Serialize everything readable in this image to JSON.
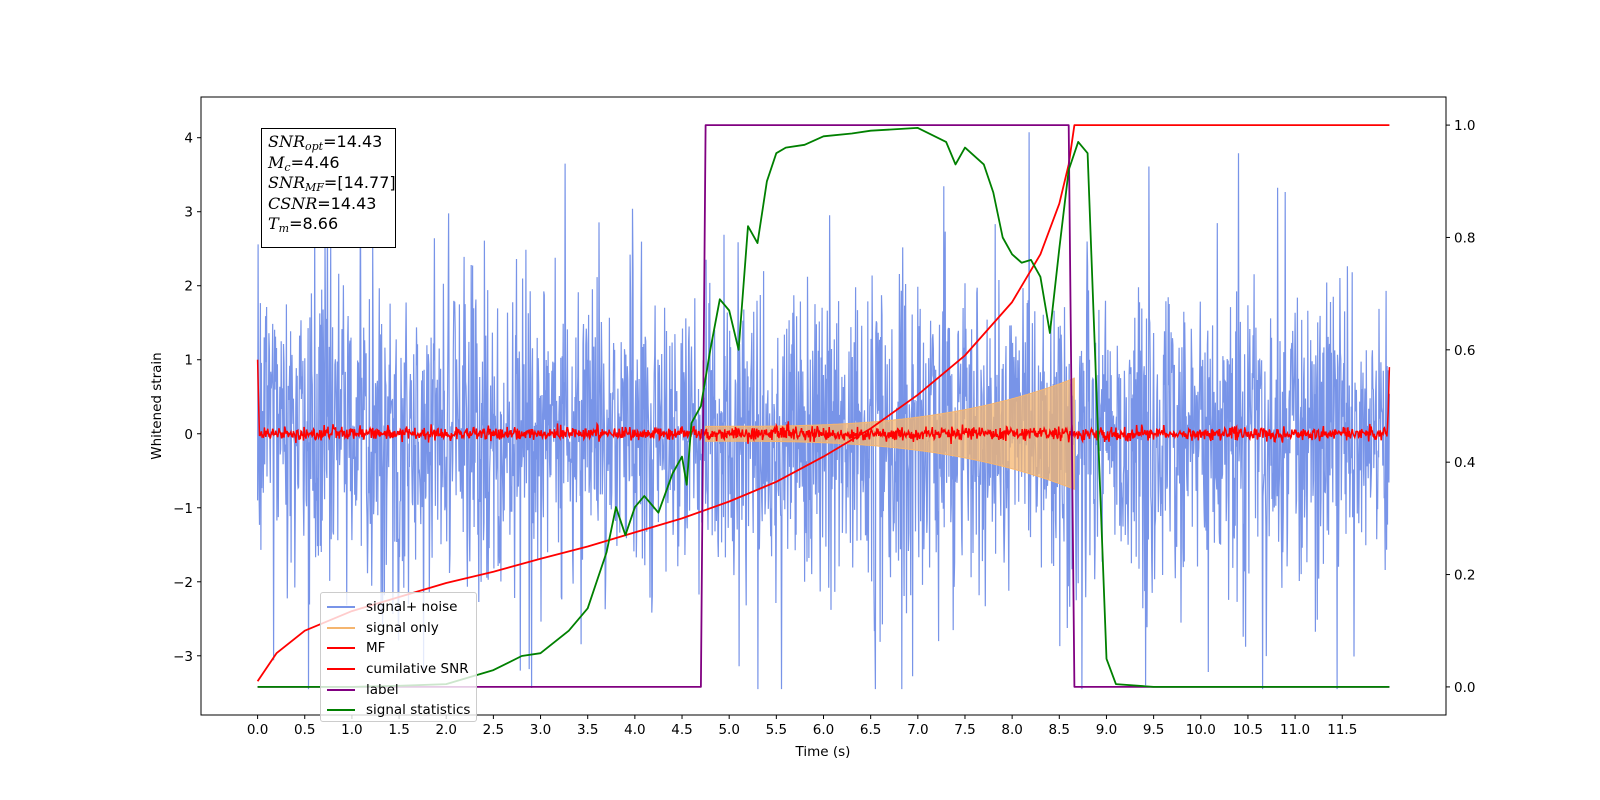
{
  "chart_data": {
    "type": "line",
    "xlabel": "Time (s)",
    "ylabel": "Whitened strain",
    "xlim": [
      -0.6,
      12.6
    ],
    "ylim": [
      -3.8,
      4.55
    ],
    "y2lim": [
      -0.05,
      1.05
    ],
    "x_ticks": [
      "0.0",
      "0.5",
      "1.0",
      "1.5",
      "2.0",
      "2.5",
      "3.0",
      "3.5",
      "4.0",
      "4.5",
      "5.0",
      "5.5",
      "6.0",
      "6.5",
      "7.0",
      "7.5",
      "8.0",
      "8.5",
      "9.0",
      "9.5",
      "10.0",
      "10.5",
      "11.0",
      "11.5"
    ],
    "y_ticks": [
      "−3",
      "−2",
      "−1",
      "0",
      "1",
      "2",
      "3",
      "4"
    ],
    "y2_ticks": [
      "0.0",
      "0.2",
      "0.4",
      "0.6",
      "0.8",
      "1.0"
    ],
    "signal_start": 4.75,
    "merger_time": 8.66,
    "series": [
      {
        "name": "signal+ noise",
        "color": "#7894e8",
        "axis": "left",
        "description": "white noise, amplitude about ±4, over 0–12 s"
      },
      {
        "name": "signal only",
        "color": "#f5b56f",
        "axis": "left",
        "description": "chirp envelope from 4.75 s to 8.66 s, amplitude growing from 0.1 to 0.75"
      },
      {
        "name": "MF",
        "color": "#ff0000",
        "axis": "left",
        "description": "matched-filter output near 0 with spikes of 1.0 at the edges"
      },
      {
        "name": "cumilative SNR",
        "color": "#ff0000",
        "axis": "right",
        "points": [
          [
            0.0,
            0.01
          ],
          [
            0.2,
            0.06
          ],
          [
            0.5,
            0.1
          ],
          [
            1.0,
            0.135
          ],
          [
            1.5,
            0.16
          ],
          [
            2.0,
            0.185
          ],
          [
            2.5,
            0.205
          ],
          [
            3.0,
            0.228
          ],
          [
            3.5,
            0.25
          ],
          [
            4.0,
            0.275
          ],
          [
            4.5,
            0.3
          ],
          [
            5.0,
            0.33
          ],
          [
            5.5,
            0.365
          ],
          [
            6.0,
            0.41
          ],
          [
            6.5,
            0.46
          ],
          [
            7.0,
            0.52
          ],
          [
            7.5,
            0.59
          ],
          [
            8.0,
            0.685
          ],
          [
            8.3,
            0.77
          ],
          [
            8.5,
            0.86
          ],
          [
            8.6,
            0.93
          ],
          [
            8.66,
            1.0
          ],
          [
            12.0,
            1.0
          ]
        ]
      },
      {
        "name": "label",
        "color": "#800080",
        "axis": "right",
        "points": [
          [
            0.0,
            0.0
          ],
          [
            4.7,
            0.0
          ],
          [
            4.75,
            1.0
          ],
          [
            8.6,
            1.0
          ],
          [
            8.66,
            0.0
          ],
          [
            12.0,
            0.0
          ]
        ]
      },
      {
        "name": "signal statistics",
        "color": "#008000",
        "axis": "right",
        "points": [
          [
            0.0,
            0.0
          ],
          [
            1.0,
            0.0
          ],
          [
            1.5,
            0.002
          ],
          [
            2.0,
            0.005
          ],
          [
            2.5,
            0.03
          ],
          [
            2.8,
            0.055
          ],
          [
            3.0,
            0.06
          ],
          [
            3.3,
            0.1
          ],
          [
            3.5,
            0.14
          ],
          [
            3.7,
            0.24
          ],
          [
            3.8,
            0.32
          ],
          [
            3.9,
            0.27
          ],
          [
            4.0,
            0.32
          ],
          [
            4.1,
            0.34
          ],
          [
            4.25,
            0.31
          ],
          [
            4.4,
            0.38
          ],
          [
            4.5,
            0.41
          ],
          [
            4.55,
            0.36
          ],
          [
            4.6,
            0.47
          ],
          [
            4.7,
            0.5
          ],
          [
            4.8,
            0.6
          ],
          [
            4.9,
            0.69
          ],
          [
            5.0,
            0.67
          ],
          [
            5.1,
            0.6
          ],
          [
            5.2,
            0.82
          ],
          [
            5.3,
            0.79
          ],
          [
            5.4,
            0.9
          ],
          [
            5.5,
            0.95
          ],
          [
            5.6,
            0.96
          ],
          [
            5.8,
            0.965
          ],
          [
            6.0,
            0.98
          ],
          [
            6.3,
            0.985
          ],
          [
            6.5,
            0.99
          ],
          [
            7.0,
            0.995
          ],
          [
            7.3,
            0.97
          ],
          [
            7.4,
            0.93
          ],
          [
            7.5,
            0.96
          ],
          [
            7.7,
            0.93
          ],
          [
            7.8,
            0.88
          ],
          [
            7.9,
            0.8
          ],
          [
            8.0,
            0.77
          ],
          [
            8.1,
            0.755
          ],
          [
            8.2,
            0.76
          ],
          [
            8.3,
            0.73
          ],
          [
            8.4,
            0.63
          ],
          [
            8.5,
            0.78
          ],
          [
            8.6,
            0.92
          ],
          [
            8.7,
            0.97
          ],
          [
            8.8,
            0.95
          ],
          [
            8.9,
            0.5
          ],
          [
            9.0,
            0.05
          ],
          [
            9.1,
            0.005
          ],
          [
            9.5,
            0.0
          ],
          [
            12.0,
            0.0
          ]
        ]
      }
    ],
    "annotation": {
      "lines": [
        {
          "label": "SNR",
          "sub": "opt",
          "value": "=14.43"
        },
        {
          "label": "M",
          "sub": "c",
          "value": "=4.46"
        },
        {
          "label": "SNR",
          "sub": "MF",
          "value": "=[14.77]"
        },
        {
          "label": "CSNR",
          "sub": "",
          "value": "=14.43"
        },
        {
          "label": "T",
          "sub": "m",
          "value": "=8.66"
        }
      ]
    },
    "legend_position": "lower-left"
  }
}
